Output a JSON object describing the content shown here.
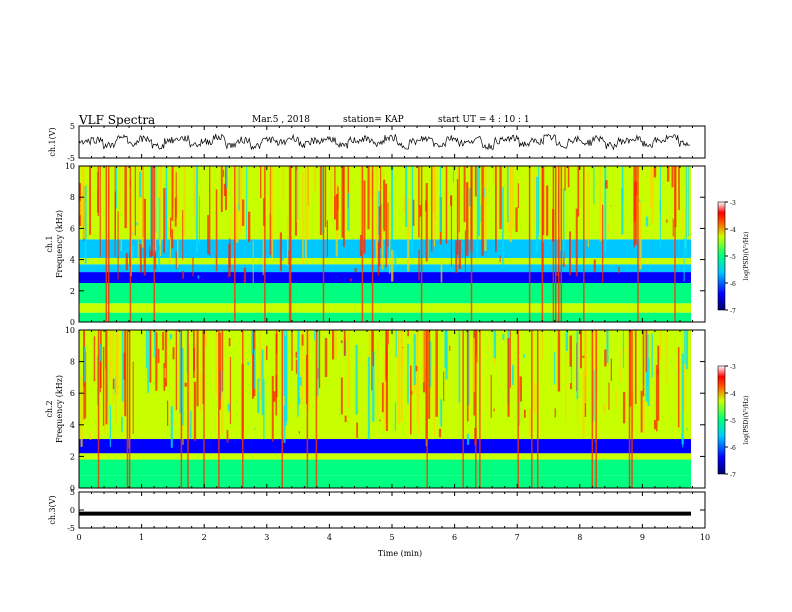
{
  "header": {
    "title": "VLF Spectra",
    "date": "Mar.5  , 2018",
    "station": "station= KAP",
    "start": "start  UT  =   4 : 10 : 1"
  },
  "chart_data": [
    {
      "type": "line",
      "title": "",
      "ylabel": "ch.1(V)",
      "ylim": [
        -5,
        5
      ],
      "yticks": [
        "5",
        "-5"
      ],
      "xlim": [
        0,
        10
      ],
      "series": [
        {
          "values_note": "noisy waveform oscillating roughly between -3 and 3 V",
          "values": [
            0.5,
            1.2,
            -1.8,
            2.0,
            -0.6,
            1.5,
            -2.2,
            0.8,
            1.9,
            -1.1,
            0.3,
            2.4,
            -1.6,
            1.0,
            -2.0,
            1.3,
            -0.4,
            2.1,
            -1.4,
            0.6,
            1.7,
            -2.3,
            0.9,
            1.4,
            -0.8,
            2.2,
            -1.9,
            0.2,
            1.6,
            -1.2,
            2.0,
            -0.5,
            1.1,
            -2.1,
            0.7,
            1.8,
            -1.0,
            0.4,
            2.3,
            -1.7,
            1.2,
            -0.3,
            1.9,
            -2.0,
            0.5,
            1.5,
            -1.3,
            0.8,
            2.1,
            -0.9
          ]
        }
      ]
    },
    {
      "type": "heatmap",
      "ylabel": "ch.1\nFrequency (kHz)",
      "ylim": [
        0,
        10
      ],
      "yticks": [
        "0",
        "2",
        "4",
        "6",
        "8",
        "10"
      ],
      "xlim": [
        0,
        10
      ],
      "colorbar": {
        "label": "log(PSD)(V²/Hz)",
        "range": [
          -7,
          -3
        ],
        "ticks": [
          "-3",
          "-4",
          "-5",
          "-6",
          "-7"
        ]
      }
    },
    {
      "type": "heatmap",
      "ylabel": "ch.2\nFrequency (kHz)",
      "ylim": [
        0,
        10
      ],
      "yticks": [
        "0",
        "2",
        "4",
        "6",
        "8",
        "10"
      ],
      "xlim": [
        0,
        10
      ],
      "colorbar": {
        "label": "log(PSD)(V²/Hz)",
        "range": [
          -7,
          -3
        ],
        "ticks": [
          "-3",
          "-4",
          "-5",
          "-6",
          "-7"
        ]
      }
    },
    {
      "type": "line",
      "ylabel": "ch.3(V)",
      "ylim": [
        -5,
        5
      ],
      "yticks": [
        "5",
        "0",
        "-5"
      ],
      "xlim": [
        0,
        10
      ],
      "series": [
        {
          "values": [
            -1,
            -1
          ]
        }
      ]
    }
  ],
  "xaxis": {
    "label": "Time  (min)",
    "ticks": [
      "0",
      "1",
      "2",
      "3",
      "4",
      "5",
      "6",
      "7",
      "8",
      "9",
      "10"
    ]
  },
  "colors": {
    "colormap": [
      "#00006e",
      "#0000ff",
      "#00c8ff",
      "#00ff80",
      "#c8ff00",
      "#ff6400",
      "#ff0000",
      "#ffffff"
    ]
  }
}
